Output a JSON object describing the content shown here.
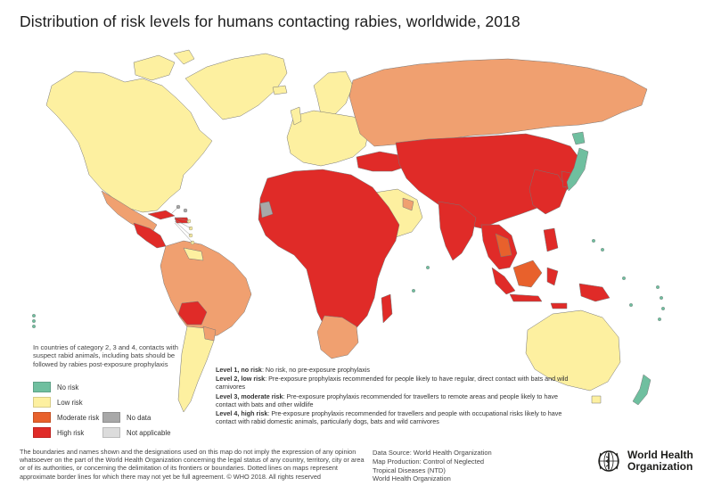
{
  "title": "Distribution of risk levels for humans contacting rabies, worldwide, 2018",
  "colors": {
    "level1": "#6fbf9f",
    "level2": "#fdf0a0",
    "level3": "#f0a070",
    "level4": "#e02b28",
    "moderate_legend": "#e8612c",
    "no_data": "#a8a8a8",
    "not_applicable": "#dcdcdc"
  },
  "note": "In countries of category 2, 3 and 4, contacts with suspect rabid animals, including bats should be followed by rabies post-exposure prophylaxis",
  "legend": {
    "no_risk": "No risk",
    "low_risk": "Low risk",
    "moderate_risk": "Moderate risk",
    "high_risk": "High risk",
    "no_data": "No data",
    "not_applicable": "Not applicable"
  },
  "levels": {
    "l1_label": "Level 1, no risk",
    "l1_text": ": No risk, no pre-exposure prophylaxis",
    "l2_label": "Level 2, low risk",
    "l2_text": ": Pre-exposure prophylaxis recommended for people likely to have regular, direct contact with bats and wild carnivores",
    "l3_label": "Level 3, moderate risk",
    "l3_text": ": Pre-exposure prophylaxis recommended for travellers to remote areas and people likely to have contact with bats and other wildlife",
    "l4_label": "Level 4, high risk",
    "l4_text": ": Pre-exposure prophylaxis recommended for travellers and people with occupational risks likely to have contact with rabid domestic animals, particularly dogs, bats and wild carnivores"
  },
  "disclaimer": "The boundaries and names shown and the designations used on this map do not imply the expression of any opinion whatsoever on the part of the World Health Organization concerning the legal status of any country, territory, city or area or of its authorities, or concerning the delimitation of its frontiers or boundaries. Dotted lines on maps represent approximate border lines for which there may not yet be full agreement. © WHO 2018. All rights reserved",
  "source": {
    "line1": "Data Source: World Health Organization",
    "line2": "Map Production: Control of Neglected",
    "line3": "Tropical Diseases (NTD)",
    "line4": "World Health Organization"
  },
  "who": {
    "line1": "World Health",
    "line2": "Organization"
  }
}
